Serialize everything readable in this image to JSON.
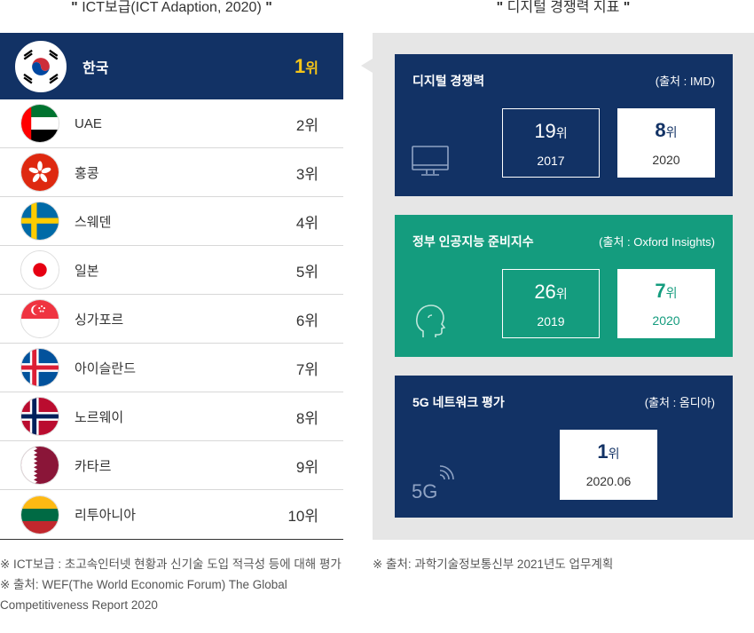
{
  "left": {
    "title": "ICT보급(ICT Adaption, 2020)",
    "quote_open": "\"",
    "quote_close": "\"",
    "rows": [
      {
        "country": "한국",
        "rank_num": "1",
        "rank_unit": "위",
        "flag": "south-korea-flag-icon"
      },
      {
        "country": "UAE",
        "rank": "2위",
        "flag": "uae-flag-icon"
      },
      {
        "country": "홍콩",
        "rank": "3위",
        "flag": "hong-kong-flag-icon"
      },
      {
        "country": "스웨덴",
        "rank": "4위",
        "flag": "sweden-flag-icon"
      },
      {
        "country": "일본",
        "rank": "5위",
        "flag": "japan-flag-icon"
      },
      {
        "country": "싱가포르",
        "rank": "6위",
        "flag": "singapore-flag-icon"
      },
      {
        "country": "아이슬란드",
        "rank": "7위",
        "flag": "iceland-flag-icon"
      },
      {
        "country": "노르웨이",
        "rank": "8위",
        "flag": "norway-flag-icon"
      },
      {
        "country": "카타르",
        "rank": "9위",
        "flag": "qatar-flag-icon"
      },
      {
        "country": "리투아니아",
        "rank": "10위",
        "flag": "lithuania-flag-icon"
      }
    ],
    "notes": [
      "※ ICT보급 : 초고속인터넷 현황과 신기술 도입 적극성 등에 대해 평가",
      "※ 출처: WEF(The World Economic Forum) The Global Competitiveness Report 2020"
    ]
  },
  "right": {
    "title": "디지털 경쟁력 지표",
    "cards": [
      {
        "title": "디지털 경쟁력",
        "source": "(출처 : IMD)",
        "icon": "monitor-icon",
        "boxes": [
          {
            "value": "19",
            "unit": "위",
            "year": "2017"
          },
          {
            "value": "8",
            "unit": "위",
            "year": "2020"
          }
        ]
      },
      {
        "title": "정부 인공지능 준비지수",
        "source": "(출처 : Oxford Insights)",
        "icon": "head-profile-icon",
        "boxes": [
          {
            "value": "26",
            "unit": "위",
            "year": "2019"
          },
          {
            "value": "7",
            "unit": "위",
            "year": "2020"
          }
        ]
      },
      {
        "title": "5G 네트워크 평가",
        "source": "(출처 : 옴디아)",
        "icon": "5g-signal-icon",
        "icon_text": "5G",
        "boxes": [
          {
            "value": "1",
            "unit": "위",
            "year": "2020.06"
          }
        ]
      }
    ],
    "note": "※ 출처: 과학기술정보통신부 2021년도 업무계획"
  },
  "colors": {
    "navy": "#123265",
    "green": "#149c7e",
    "gold": "#f5c518",
    "panel_gray": "#e6e6e6"
  }
}
